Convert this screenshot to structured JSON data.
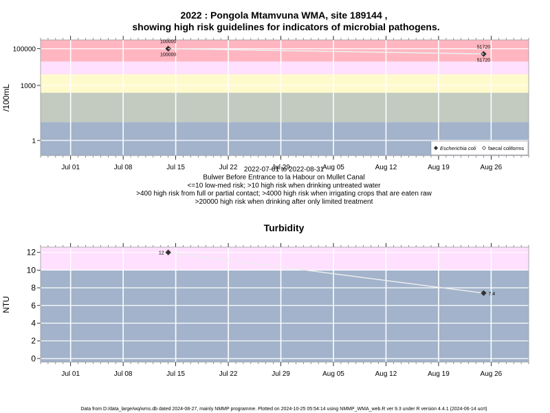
{
  "title": {
    "line1": "2022 : Pongola Mtamvuna WMA, site 189144 ,",
    "line2": "showing high risk guidelines for indicators of microbial pathogens."
  },
  "colors": {
    "band_blue": "#a2b3cb",
    "band_green": "#c3cbc0",
    "band_yellow": "#fffacc",
    "band_pink": "#ffe0ff",
    "band_red": "#ffb6c1",
    "line": "#ededed",
    "grid": "#ffffff",
    "marker": "#333333"
  },
  "chart_data": [
    {
      "type": "scatter",
      "title": "",
      "ylabel": "/100mL",
      "yscale": "log",
      "xlim": [
        "2022-06-27",
        "2022-08-31"
      ],
      "ylim": [
        0.15,
        300000
      ],
      "yticks": [
        1,
        1000,
        100000
      ],
      "ytick_labels": [
        "1",
        "1000",
        "100000"
      ],
      "xticks": [
        "2022-07-01",
        "2022-07-08",
        "2022-07-15",
        "2022-07-22",
        "2022-07-29",
        "2022-08-05",
        "2022-08-12",
        "2022-08-19",
        "2022-08-26"
      ],
      "xtick_labels": [
        "Jul 01",
        "Jul 08",
        "Jul 15",
        "Jul 22",
        "Jul 29",
        "Aug 05",
        "Aug 12",
        "Aug 19",
        "Aug 26"
      ],
      "bands": [
        {
          "from": 0.15,
          "to": 10,
          "color": "#a2b3cb"
        },
        {
          "from": 10,
          "to": 400,
          "color": "#c3cbc0"
        },
        {
          "from": 400,
          "to": 4000,
          "color": "#fffacc"
        },
        {
          "from": 4000,
          "to": 20000,
          "color": "#ffe0ff"
        },
        {
          "from": 20000,
          "to": 300000,
          "color": "#ffb6c1"
        }
      ],
      "series": [
        {
          "name": "Escherichia coli",
          "marker": "filled-diamond",
          "x": [
            "2022-07-14",
            "2022-08-25"
          ],
          "y": [
            100000,
            51720
          ]
        },
        {
          "name": "faecal coliforms",
          "marker": "open-diamond",
          "x": [
            "2022-07-14",
            "2022-08-25"
          ],
          "y": [
            100000,
            51720
          ]
        }
      ],
      "legend_position": "bottom-right",
      "xlabel_lines": [
        "2022-07-01 to 2022-08-31",
        "Bulwer Before Entrance to la Habour on Mullet Canal",
        "<=10 low-med risk; >10 high risk when drinking untreated water",
        ">400 high risk from full or partial contact; >4000 high risk when irrigating crops that are eaten raw",
        ">20000 high risk when drinking after only limited treatment"
      ]
    },
    {
      "type": "scatter",
      "title": "Turbidity",
      "ylabel": "NTU",
      "yscale": "linear",
      "xlim": [
        "2022-06-27",
        "2022-08-31"
      ],
      "ylim": [
        -0.4,
        12.6
      ],
      "yticks": [
        0,
        2,
        4,
        6,
        8,
        10,
        12
      ],
      "xticks": [
        "2022-07-01",
        "2022-07-08",
        "2022-07-15",
        "2022-07-22",
        "2022-07-29",
        "2022-08-05",
        "2022-08-12",
        "2022-08-19",
        "2022-08-26"
      ],
      "xtick_labels": [
        "Jul 01",
        "Jul 08",
        "Jul 15",
        "Jul 22",
        "Jul 29",
        "Aug 05",
        "Aug 12",
        "Aug 19",
        "Aug 26"
      ],
      "bands": [
        {
          "from": -0.4,
          "to": 10,
          "color": "#a2b3cb"
        },
        {
          "from": 10,
          "to": 12.6,
          "color": "#ffe0ff"
        }
      ],
      "series": [
        {
          "name": "",
          "marker": "filled-diamond",
          "x": [
            "2022-07-14",
            "2022-08-25"
          ],
          "y": [
            12,
            7.4
          ]
        }
      ]
    }
  ],
  "footer": "Data from D:/data_large/wq/wms.db dated 2024-08-27, mainly NMMP programme. Plotted on 2024-10-25 05:54:14 using NMMP_WMA_web.R ver 9.3 under R version 4.4.1 (2024-06-14 ucrt)"
}
